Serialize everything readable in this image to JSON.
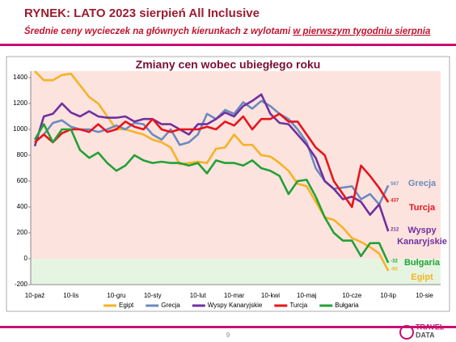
{
  "header": {
    "title": "RYNEK: LATO 2023 sierpień All Inclusive",
    "subtitle": "Średnie ceny wycieczek na głównych kierunkach z wylotami",
    "subtitle_emphasis": "w pierwszym tygodniu sierpnia"
  },
  "chart_data": {
    "type": "line",
    "title": "Zmiany cen wobec ubiegłego roku",
    "categories": [
      "10-paź",
      null,
      null,
      null,
      "10-lis",
      null,
      null,
      null,
      null,
      "10-gru",
      null,
      null,
      null,
      "10-sty",
      null,
      null,
      null,
      null,
      "10-lut",
      null,
      null,
      null,
      "10-mar",
      null,
      null,
      null,
      "10-kwi",
      null,
      null,
      null,
      "10-maj",
      null,
      null,
      null,
      null,
      "10-cze",
      null,
      null,
      null,
      "10-lip",
      null,
      null,
      null,
      "10-sie"
    ],
    "series": [
      {
        "name": "Egipt",
        "color": "#f5b324",
        "values": [
          1450,
          1380,
          1380,
          1420,
          1430,
          1340,
          1250,
          1200,
          1100,
          1000,
          1000,
          980,
          960,
          920,
          900,
          860,
          730,
          740,
          750,
          740,
          850,
          860,
          960,
          880,
          880,
          800,
          790,
          740,
          680,
          580,
          560,
          440,
          320,
          300,
          240,
          160,
          130,
          90,
          40,
          -93,
          null,
          null,
          null,
          null
        ]
      },
      {
        "name": "Grecja",
        "color": "#6b8bbf",
        "values": [
          900,
          960,
          1050,
          1070,
          1020,
          1000,
          1000,
          980,
          1000,
          1030,
          1000,
          1050,
          1040,
          960,
          920,
          1000,
          880,
          900,
          960,
          1120,
          1080,
          1150,
          1120,
          1210,
          1160,
          1220,
          1180,
          1120,
          1080,
          1000,
          900,
          700,
          600,
          540,
          550,
          560,
          460,
          500,
          420,
          567,
          null,
          null,
          null,
          null
        ]
      },
      {
        "name": "Wyspy Kanaryjskie",
        "color": "#7030a0",
        "values": [
          870,
          1100,
          1120,
          1200,
          1130,
          1100,
          1140,
          1100,
          1090,
          1090,
          1100,
          1060,
          1080,
          1080,
          1040,
          1040,
          1000,
          960,
          1040,
          1040,
          1080,
          1130,
          1100,
          1180,
          1220,
          1270,
          1120,
          1050,
          1040,
          960,
          880,
          780,
          600,
          540,
          460,
          480,
          440,
          340,
          420,
          212,
          null,
          null,
          null,
          null
        ]
      },
      {
        "name": "Turcja",
        "color": "#e8141b",
        "values": [
          900,
          960,
          900,
          970,
          1000,
          1000,
          980,
          1040,
          980,
          1000,
          1060,
          1020,
          1000,
          1080,
          1000,
          980,
          1000,
          1000,
          1000,
          1020,
          1000,
          1060,
          1030,
          1100,
          1000,
          1080,
          1080,
          1120,
          1060,
          1060,
          960,
          860,
          800,
          600,
          500,
          400,
          720,
          640,
          547,
          437,
          null,
          null,
          null,
          null
        ]
      },
      {
        "name": "Bułgaria",
        "color": "#23a136",
        "values": [
          920,
          1040,
          900,
          1000,
          1000,
          840,
          780,
          820,
          740,
          680,
          720,
          800,
          760,
          740,
          750,
          740,
          740,
          720,
          740,
          660,
          760,
          740,
          740,
          720,
          760,
          700,
          680,
          640,
          500,
          600,
          610,
          480,
          320,
          200,
          140,
          140,
          20,
          120,
          121,
          -32,
          null,
          null,
          null,
          null
        ]
      }
    ],
    "ylim": [
      -200,
      1450
    ],
    "yticks": [
      -200,
      0,
      200,
      400,
      600,
      800,
      1000,
      1200,
      1400
    ],
    "grid": false,
    "legend": "bottom"
  },
  "footer": {
    "page": "9",
    "logo_top": "TRAVEL",
    "logo_bottom": "DATA"
  }
}
